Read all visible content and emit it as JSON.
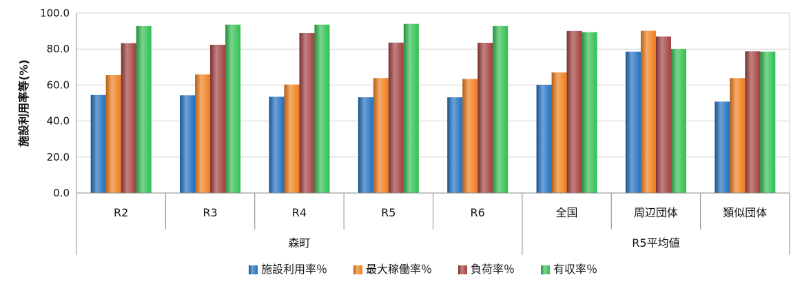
{
  "chart_data": {
    "type": "bar",
    "ylabel": "施設利用率等(%)",
    "ylim": [
      0,
      100
    ],
    "yticks": [
      "0.0",
      "20.0",
      "40.0",
      "60.0",
      "80.0",
      "100.0"
    ],
    "ytick_values": [
      0,
      20,
      40,
      60,
      80,
      100
    ],
    "grid": true,
    "legend_position": "bottom",
    "categories": [
      "R2",
      "R3",
      "R4",
      "R5",
      "R6",
      "全国",
      "周辺団体",
      "類似団体"
    ],
    "groups": [
      {
        "label": "森町",
        "categories": [
          "R2",
          "R3",
          "R4",
          "R5",
          "R6"
        ]
      },
      {
        "label": "R5平均値",
        "categories": [
          "全国",
          "周辺団体",
          "類似団体"
        ]
      }
    ],
    "series": [
      {
        "name": "施設利用率％",
        "color": "#1f6fbf",
        "values": [
          54.5,
          54.3,
          53.5,
          53.2,
          53.2,
          60.2,
          78.6,
          50.8
        ]
      },
      {
        "name": "最大稼働率％",
        "color": "#f07d1a",
        "values": [
          65.5,
          65.9,
          60.3,
          63.9,
          63.4,
          67.0,
          90.2,
          63.9
        ]
      },
      {
        "name": "負荷率％",
        "color": "#a13d3d",
        "values": [
          83.3,
          82.4,
          88.9,
          83.6,
          83.5,
          90.1,
          87.0,
          78.8
        ]
      },
      {
        "name": "有収率％",
        "color": "#2fbf4f",
        "values": [
          92.8,
          93.6,
          93.6,
          94.0,
          92.8,
          89.4,
          80.1,
          78.6
        ]
      }
    ]
  }
}
